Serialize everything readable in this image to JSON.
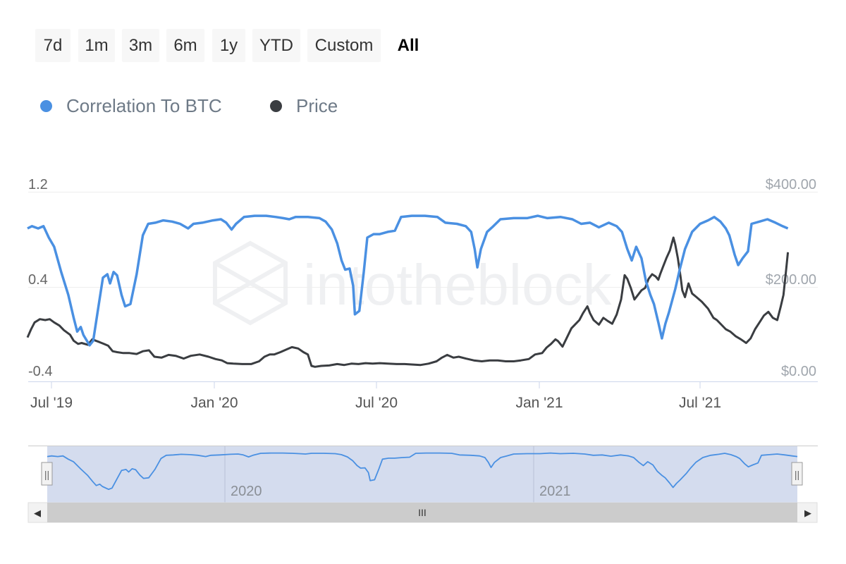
{
  "range_selector": {
    "buttons": [
      "7d",
      "1m",
      "3m",
      "6m",
      "1y",
      "YTD",
      "Custom",
      "All"
    ],
    "active": "All"
  },
  "legend": {
    "items": [
      {
        "label": "Correlation To BTC",
        "color": "#4a90e2"
      },
      {
        "label": "Price",
        "color": "#3a3d41"
      }
    ]
  },
  "watermark": "intotheblock",
  "chart_data": {
    "type": "line",
    "x_tick_labels": [
      "Jul '19",
      "Jan '20",
      "Jul '20",
      "Jan '21",
      "Jul '21"
    ],
    "left_axis": {
      "ticks": [
        "1.2",
        "0.4",
        "-0.4"
      ],
      "range": [
        -0.4,
        1.2
      ]
    },
    "right_axis": {
      "ticks": [
        "$400.00",
        "$200.00",
        "$0.00"
      ],
      "range": [
        0,
        400
      ]
    },
    "x_range": [
      "2019-06-04",
      "2021-10-08"
    ],
    "series": [
      {
        "name": "Correlation To BTC",
        "axis": "left",
        "color": "#4a90e2",
        "points": [
          [
            "2019-06-04",
            0.88
          ],
          [
            "2019-06-09",
            0.9
          ],
          [
            "2019-06-16",
            0.88
          ],
          [
            "2019-06-22",
            0.9
          ],
          [
            "2019-06-28",
            0.8
          ],
          [
            "2019-07-04",
            0.72
          ],
          [
            "2019-07-12",
            0.5
          ],
          [
            "2019-07-20",
            0.3
          ],
          [
            "2019-07-26",
            0.1
          ],
          [
            "2019-07-30",
            -0.02
          ],
          [
            "2019-08-03",
            0.02
          ],
          [
            "2019-08-06",
            -0.05
          ],
          [
            "2019-08-13",
            -0.14
          ],
          [
            "2019-08-17",
            -0.1
          ],
          [
            "2019-08-23",
            0.2
          ],
          [
            "2019-08-28",
            0.45
          ],
          [
            "2019-09-02",
            0.48
          ],
          [
            "2019-09-05",
            0.4
          ],
          [
            "2019-09-09",
            0.5
          ],
          [
            "2019-09-13",
            0.47
          ],
          [
            "2019-09-18",
            0.3
          ],
          [
            "2019-09-22",
            0.2
          ],
          [
            "2019-09-28",
            0.22
          ],
          [
            "2019-10-05",
            0.48
          ],
          [
            "2019-10-12",
            0.82
          ],
          [
            "2019-10-18",
            0.92
          ],
          [
            "2019-10-26",
            0.93
          ],
          [
            "2019-11-04",
            0.95
          ],
          [
            "2019-11-14",
            0.94
          ],
          [
            "2019-11-23",
            0.92
          ],
          [
            "2019-12-02",
            0.88
          ],
          [
            "2019-12-08",
            0.92
          ],
          [
            "2019-12-18",
            0.93
          ],
          [
            "2019-12-30",
            0.95
          ],
          [
            "2020-01-08",
            0.96
          ],
          [
            "2020-01-14",
            0.93
          ],
          [
            "2020-01-20",
            0.87
          ],
          [
            "2020-01-25",
            0.92
          ],
          [
            "2020-02-03",
            0.98
          ],
          [
            "2020-02-15",
            0.99
          ],
          [
            "2020-02-28",
            0.99
          ],
          [
            "2020-03-10",
            0.98
          ],
          [
            "2020-03-18",
            0.97
          ],
          [
            "2020-03-25",
            0.96
          ],
          [
            "2020-04-01",
            0.98
          ],
          [
            "2020-04-15",
            0.98
          ],
          [
            "2020-04-28",
            0.97
          ],
          [
            "2020-05-05",
            0.94
          ],
          [
            "2020-05-12",
            0.87
          ],
          [
            "2020-05-18",
            0.75
          ],
          [
            "2020-05-23",
            0.6
          ],
          [
            "2020-05-27",
            0.52
          ],
          [
            "2020-06-01",
            0.53
          ],
          [
            "2020-06-05",
            0.38
          ],
          [
            "2020-06-07",
            0.13
          ],
          [
            "2020-06-12",
            0.16
          ],
          [
            "2020-06-17",
            0.5
          ],
          [
            "2020-06-21",
            0.8
          ],
          [
            "2020-06-28",
            0.83
          ],
          [
            "2020-07-05",
            0.83
          ],
          [
            "2020-07-14",
            0.85
          ],
          [
            "2020-07-22",
            0.86
          ],
          [
            "2020-07-29",
            0.98
          ],
          [
            "2020-08-10",
            0.99
          ],
          [
            "2020-08-25",
            0.99
          ],
          [
            "2020-09-08",
            0.98
          ],
          [
            "2020-09-17",
            0.93
          ],
          [
            "2020-09-30",
            0.92
          ],
          [
            "2020-10-10",
            0.9
          ],
          [
            "2020-10-16",
            0.85
          ],
          [
            "2020-10-20",
            0.7
          ],
          [
            "2020-10-23",
            0.54
          ],
          [
            "2020-10-27",
            0.7
          ],
          [
            "2020-11-03",
            0.85
          ],
          [
            "2020-11-10",
            0.9
          ],
          [
            "2020-11-18",
            0.96
          ],
          [
            "2020-12-03",
            0.97
          ],
          [
            "2020-12-18",
            0.97
          ],
          [
            "2020-12-30",
            0.99
          ],
          [
            "2021-01-10",
            0.97
          ],
          [
            "2021-01-25",
            0.98
          ],
          [
            "2021-02-07",
            0.96
          ],
          [
            "2021-02-17",
            0.92
          ],
          [
            "2021-02-27",
            0.93
          ],
          [
            "2021-03-09",
            0.89
          ],
          [
            "2021-03-20",
            0.93
          ],
          [
            "2021-03-29",
            0.9
          ],
          [
            "2021-04-04",
            0.85
          ],
          [
            "2021-04-10",
            0.7
          ],
          [
            "2021-04-15",
            0.6
          ],
          [
            "2021-04-20",
            0.72
          ],
          [
            "2021-04-26",
            0.62
          ],
          [
            "2021-05-01",
            0.42
          ],
          [
            "2021-05-06",
            0.3
          ],
          [
            "2021-05-10",
            0.22
          ],
          [
            "2021-05-15",
            0.06
          ],
          [
            "2021-05-19",
            -0.08
          ],
          [
            "2021-05-23",
            0.05
          ],
          [
            "2021-05-27",
            0.15
          ],
          [
            "2021-06-03",
            0.35
          ],
          [
            "2021-06-08",
            0.52
          ],
          [
            "2021-06-14",
            0.7
          ],
          [
            "2021-06-22",
            0.85
          ],
          [
            "2021-07-01",
            0.92
          ],
          [
            "2021-07-10",
            0.95
          ],
          [
            "2021-07-17",
            0.98
          ],
          [
            "2021-07-24",
            0.94
          ],
          [
            "2021-07-30",
            0.88
          ],
          [
            "2021-08-03",
            0.82
          ],
          [
            "2021-08-09",
            0.65
          ],
          [
            "2021-08-13",
            0.56
          ],
          [
            "2021-08-18",
            0.62
          ],
          [
            "2021-08-24",
            0.68
          ],
          [
            "2021-08-28",
            0.92
          ],
          [
            "2021-09-06",
            0.94
          ],
          [
            "2021-09-15",
            0.96
          ],
          [
            "2021-09-24",
            0.93
          ],
          [
            "2021-10-02",
            0.9
          ],
          [
            "2021-10-08",
            0.88
          ]
        ]
      },
      {
        "name": "Price",
        "axis": "right",
        "color": "#3a3d41",
        "points": [
          [
            "2019-06-04",
            82
          ],
          [
            "2019-06-08",
            100
          ],
          [
            "2019-06-12",
            115
          ],
          [
            "2019-06-18",
            122
          ],
          [
            "2019-06-24",
            120
          ],
          [
            "2019-06-29",
            122
          ],
          [
            "2019-07-04",
            115
          ],
          [
            "2019-07-10",
            108
          ],
          [
            "2019-07-15",
            98
          ],
          [
            "2019-07-22",
            88
          ],
          [
            "2019-07-26",
            75
          ],
          [
            "2019-07-31",
            68
          ],
          [
            "2019-08-04",
            70
          ],
          [
            "2019-08-11",
            66
          ],
          [
            "2019-08-16",
            78
          ],
          [
            "2019-08-20",
            75
          ],
          [
            "2019-08-24",
            72
          ],
          [
            "2019-08-29",
            68
          ],
          [
            "2019-09-03",
            64
          ],
          [
            "2019-09-08",
            52
          ],
          [
            "2019-09-13",
            50
          ],
          [
            "2019-09-20",
            48
          ],
          [
            "2019-09-27",
            48
          ],
          [
            "2019-10-05",
            46
          ],
          [
            "2019-10-12",
            52
          ],
          [
            "2019-10-19",
            54
          ],
          [
            "2019-10-25",
            40
          ],
          [
            "2019-11-02",
            38
          ],
          [
            "2019-11-10",
            44
          ],
          [
            "2019-11-18",
            42
          ],
          [
            "2019-11-27",
            36
          ],
          [
            "2019-12-05",
            42
          ],
          [
            "2019-12-15",
            45
          ],
          [
            "2019-12-25",
            40
          ],
          [
            "2020-01-02",
            35
          ],
          [
            "2020-01-09",
            32
          ],
          [
            "2020-01-15",
            26
          ],
          [
            "2020-01-22",
            25
          ],
          [
            "2020-02-01",
            24
          ],
          [
            "2020-02-11",
            24
          ],
          [
            "2020-02-20",
            30
          ],
          [
            "2020-02-26",
            40
          ],
          [
            "2020-03-03",
            45
          ],
          [
            "2020-03-08",
            45
          ],
          [
            "2020-03-15",
            50
          ],
          [
            "2020-03-22",
            56
          ],
          [
            "2020-03-28",
            61
          ],
          [
            "2020-04-04",
            58
          ],
          [
            "2020-04-10",
            50
          ],
          [
            "2020-04-15",
            45
          ],
          [
            "2020-04-19",
            20
          ],
          [
            "2020-04-23",
            18
          ],
          [
            "2020-04-30",
            20
          ],
          [
            "2020-05-09",
            21
          ],
          [
            "2020-05-18",
            24
          ],
          [
            "2020-05-26",
            22
          ],
          [
            "2020-06-03",
            25
          ],
          [
            "2020-06-11",
            24
          ],
          [
            "2020-06-19",
            26
          ],
          [
            "2020-06-27",
            25
          ],
          [
            "2020-07-05",
            26
          ],
          [
            "2020-07-14",
            25
          ],
          [
            "2020-07-24",
            24
          ],
          [
            "2020-08-02",
            24
          ],
          [
            "2020-08-10",
            23
          ],
          [
            "2020-08-20",
            22
          ],
          [
            "2020-08-29",
            25
          ],
          [
            "2020-09-07",
            30
          ],
          [
            "2020-09-13",
            38
          ],
          [
            "2020-09-19",
            44
          ],
          [
            "2020-09-26",
            38
          ],
          [
            "2020-10-02",
            40
          ],
          [
            "2020-10-10",
            36
          ],
          [
            "2020-10-19",
            32
          ],
          [
            "2020-10-28",
            30
          ],
          [
            "2020-11-06",
            32
          ],
          [
            "2020-11-15",
            32
          ],
          [
            "2020-11-24",
            30
          ],
          [
            "2020-12-03",
            30
          ],
          [
            "2020-12-11",
            32
          ],
          [
            "2020-12-20",
            35
          ],
          [
            "2020-12-27",
            45
          ],
          [
            "2021-01-04",
            48
          ],
          [
            "2021-01-09",
            60
          ],
          [
            "2021-01-14",
            68
          ],
          [
            "2021-01-19",
            78
          ],
          [
            "2021-01-22",
            74
          ],
          [
            "2021-01-27",
            62
          ],
          [
            "2021-02-01",
            82
          ],
          [
            "2021-02-06",
            102
          ],
          [
            "2021-02-11",
            112
          ],
          [
            "2021-02-15",
            120
          ],
          [
            "2021-02-19",
            135
          ],
          [
            "2021-02-24",
            150
          ],
          [
            "2021-02-27",
            135
          ],
          [
            "2021-03-03",
            120
          ],
          [
            "2021-03-09",
            110
          ],
          [
            "2021-03-14",
            125
          ],
          [
            "2021-03-19",
            118
          ],
          [
            "2021-03-24",
            112
          ],
          [
            "2021-03-29",
            132
          ],
          [
            "2021-04-03",
            165
          ],
          [
            "2021-04-07",
            218
          ],
          [
            "2021-04-10",
            210
          ],
          [
            "2021-04-14",
            190
          ],
          [
            "2021-04-18",
            165
          ],
          [
            "2021-04-22",
            175
          ],
          [
            "2021-04-26",
            185
          ],
          [
            "2021-04-30",
            190
          ],
          [
            "2021-05-04",
            210
          ],
          [
            "2021-05-08",
            220
          ],
          [
            "2021-05-12",
            215
          ],
          [
            "2021-05-15",
            208
          ],
          [
            "2021-05-17",
            220
          ],
          [
            "2021-05-20",
            235
          ],
          [
            "2021-05-24",
            255
          ],
          [
            "2021-05-28",
            272
          ],
          [
            "2021-06-01",
            300
          ],
          [
            "2021-06-03",
            285
          ],
          [
            "2021-06-06",
            255
          ],
          [
            "2021-06-09",
            215
          ],
          [
            "2021-06-11",
            185
          ],
          [
            "2021-06-14",
            170
          ],
          [
            "2021-06-18",
            200
          ],
          [
            "2021-06-22",
            178
          ],
          [
            "2021-06-27",
            170
          ],
          [
            "2021-07-03",
            160
          ],
          [
            "2021-07-10",
            145
          ],
          [
            "2021-07-16",
            125
          ],
          [
            "2021-07-20",
            120
          ],
          [
            "2021-07-25",
            110
          ],
          [
            "2021-07-30",
            100
          ],
          [
            "2021-08-04",
            95
          ],
          [
            "2021-08-10",
            85
          ],
          [
            "2021-08-16",
            78
          ],
          [
            "2021-08-22",
            70
          ],
          [
            "2021-08-27",
            80
          ],
          [
            "2021-09-01",
            100
          ],
          [
            "2021-09-06",
            115
          ],
          [
            "2021-09-11",
            130
          ],
          [
            "2021-09-16",
            138
          ],
          [
            "2021-09-21",
            125
          ],
          [
            "2021-09-26",
            120
          ],
          [
            "2021-09-30",
            150
          ],
          [
            "2021-10-03",
            175
          ],
          [
            "2021-10-06",
            230
          ],
          [
            "2021-10-08",
            268
          ]
        ]
      }
    ]
  },
  "navigator": {
    "year_labels": [
      "2020",
      "2021"
    ],
    "left_handle": "||",
    "right_handle": "||",
    "scroll_left": "◀",
    "scroll_right": "▶",
    "scroll_grip": "III"
  }
}
